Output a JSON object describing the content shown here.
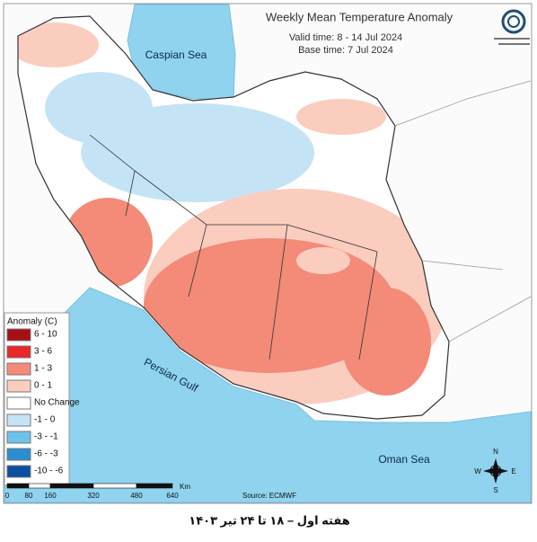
{
  "header": {
    "title": "Weekly Mean Temperature Anomaly",
    "valid_time": "Valid time: 8 - 14 Jul 2024",
    "base_time": "Base time: 7 Jul 2024"
  },
  "seas": {
    "caspian": "Caspian Sea",
    "persian_gulf": "Persian Gulf",
    "oman": "Oman Sea"
  },
  "legend": {
    "title": "Anomaly (C)",
    "items": [
      {
        "label": "6 - 10",
        "color": "#a50f15"
      },
      {
        "label": "3 - 6",
        "color": "#e8272a"
      },
      {
        "label": "1 - 3",
        "color": "#f38b78"
      },
      {
        "label": "0 - 1",
        "color": "#fbcdbf"
      },
      {
        "label": "No Change",
        "color": "#ffffff"
      },
      {
        "label": "-1 - 0",
        "color": "#c4e4f6"
      },
      {
        "label": "-3 - -1",
        "color": "#6cc3ea"
      },
      {
        "label": "-6 - -3",
        "color": "#2a8fd0"
      },
      {
        "label": "-10 - -6",
        "color": "#0b4fa0"
      }
    ]
  },
  "scale": {
    "labels": [
      "0",
      "80",
      "160",
      "320",
      "480",
      "640"
    ],
    "unit": "Km"
  },
  "source": "Source: ECMWF",
  "compass": {
    "n": "N",
    "s": "S",
    "e": "E",
    "w": "W"
  },
  "caption": "هفته اول – ۱۸ تا ۲۴ تیر ۱۴۰۳"
}
